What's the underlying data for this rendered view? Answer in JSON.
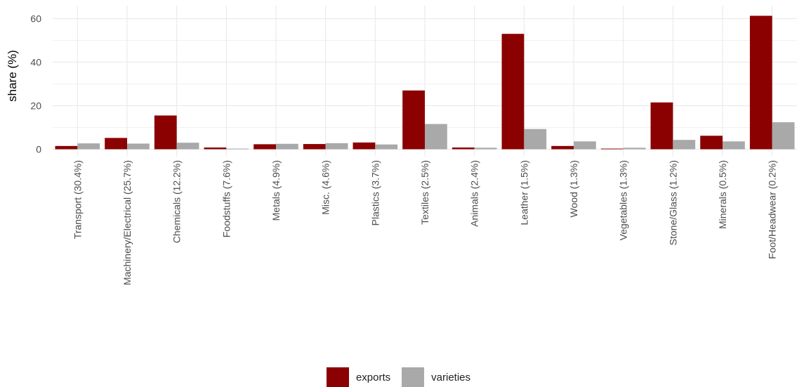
{
  "chart_data": {
    "type": "bar",
    "title": "",
    "xlabel": "",
    "ylabel": "share (%)",
    "ylim": [
      0,
      64
    ],
    "yticks": [
      0,
      20,
      40,
      60
    ],
    "grid": true,
    "legend_position": "bottom",
    "categories": [
      "Transport (30.4%)",
      "Machinery/Electrical (25.7%)",
      "Chemicals (12.2%)",
      "Foodstuffs (7.6%)",
      "Metals (4.9%)",
      "Misc. (4.6%)",
      "Plastics  (3.7%)",
      "Textiles  (2.5%)",
      "Animals (2.4%)",
      "Leather  (1.5%)",
      "Wood (1.3%)",
      "Vegetables (1.3%)",
      "Stone/Glass (1.2%)",
      "Minerals (0.5%)",
      "Foot/Headwear (0.2%)"
    ],
    "series": [
      {
        "name": "exports",
        "color": "#8b0000",
        "values": [
          1.5,
          5.2,
          15.5,
          0.8,
          2.3,
          2.4,
          3.1,
          27.0,
          0.8,
          53.0,
          1.5,
          0.3,
          21.5,
          6.2,
          61.3
        ]
      },
      {
        "name": "varieties",
        "color": "#a9a9a9",
        "values": [
          2.7,
          2.6,
          3.0,
          0.3,
          2.5,
          2.8,
          2.2,
          11.6,
          0.7,
          9.3,
          3.6,
          0.7,
          4.3,
          3.6,
          12.4
        ]
      }
    ]
  }
}
